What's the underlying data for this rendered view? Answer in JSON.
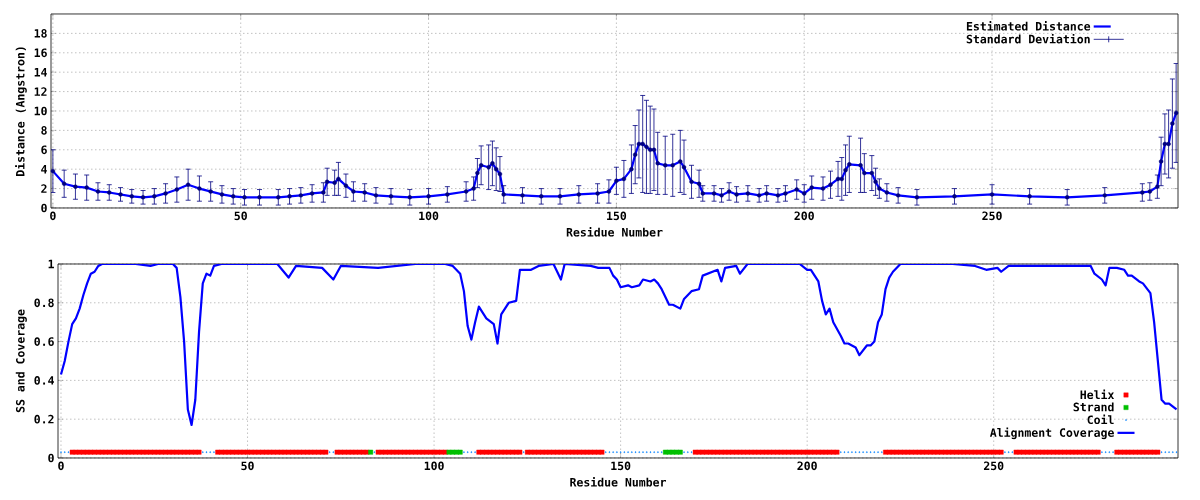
{
  "chart_data": [
    {
      "type": "line",
      "xlabel": "Residue Number",
      "ylabel": "Distance (Angstron)",
      "xlim": [
        -0.5,
        299.5
      ],
      "xticks": [
        0,
        50,
        100,
        150,
        200,
        250
      ],
      "ylim": [
        0,
        20
      ],
      "yticks": [
        0,
        2,
        4,
        6,
        8,
        10,
        12,
        14,
        16,
        18
      ],
      "grid": true,
      "legend": "top right",
      "x": [
        0,
        3,
        6,
        9,
        12,
        15,
        18,
        21,
        24,
        27,
        30,
        33,
        36,
        39,
        42,
        45,
        48,
        51,
        55,
        60,
        63,
        66,
        69,
        72,
        73,
        75,
        76,
        78,
        80,
        83,
        86,
        90,
        95,
        100,
        105,
        110,
        112,
        113,
        114,
        116,
        117,
        118,
        119,
        120,
        125,
        130,
        135,
        140,
        145,
        148,
        150,
        152,
        154,
        155,
        156,
        157,
        158,
        159,
        160,
        161,
        163,
        165,
        167,
        168,
        170,
        172,
        173,
        176,
        178,
        180,
        182,
        185,
        188,
        190,
        193,
        195,
        198,
        200,
        202,
        205,
        207,
        209,
        210,
        211,
        212,
        215,
        216,
        218,
        219,
        220,
        222,
        225,
        230,
        240,
        250,
        260,
        270,
        280,
        290,
        292,
        294,
        295,
        296,
        297,
        298,
        299
      ],
      "series": [
        {
          "name": "Estimated Distance",
          "color": "#0000ff",
          "values": [
            3.8,
            2.5,
            2.2,
            2.1,
            1.7,
            1.6,
            1.4,
            1.2,
            1.1,
            1.2,
            1.5,
            1.9,
            2.4,
            2.0,
            1.7,
            1.4,
            1.2,
            1.1,
            1.1,
            1.1,
            1.2,
            1.3,
            1.5,
            1.6,
            2.7,
            2.6,
            3.0,
            2.3,
            1.7,
            1.6,
            1.3,
            1.2,
            1.1,
            1.2,
            1.4,
            1.7,
            2.0,
            3.6,
            4.4,
            4.2,
            4.6,
            4.0,
            3.5,
            1.4,
            1.3,
            1.2,
            1.2,
            1.4,
            1.5,
            1.7,
            2.8,
            3.0,
            4.0,
            5.5,
            6.6,
            6.6,
            6.3,
            6.0,
            6.0,
            4.6,
            4.4,
            4.4,
            4.8,
            4.2,
            2.7,
            2.5,
            1.5,
            1.5,
            1.3,
            1.7,
            1.4,
            1.5,
            1.3,
            1.5,
            1.3,
            1.5,
            1.9,
            1.5,
            2.1,
            2.0,
            2.4,
            3.0,
            3.0,
            3.9,
            4.5,
            4.4,
            3.6,
            3.6,
            2.7,
            2.0,
            1.6,
            1.3,
            1.1,
            1.2,
            1.4,
            1.2,
            1.1,
            1.3,
            1.6,
            1.7,
            2.2,
            4.8,
            6.6,
            6.6,
            8.7,
            9.8
          ]
        },
        {
          "name": "Standard Deviation",
          "type": "scatter",
          "marker": "none",
          "color": "#000080",
          "values": [
            3.8,
            2.5,
            2.2,
            2.1,
            1.7,
            1.6,
            1.4,
            1.2,
            1.1,
            1.2,
            1.5,
            1.9,
            2.4,
            2.0,
            1.7,
            1.4,
            1.2,
            1.1,
            1.1,
            1.1,
            1.2,
            1.3,
            1.5,
            1.6,
            2.7,
            2.6,
            3.0,
            2.3,
            1.7,
            1.6,
            1.3,
            1.2,
            1.1,
            1.2,
            1.4,
            1.7,
            2.0,
            3.6,
            4.4,
            4.2,
            4.6,
            4.0,
            3.5,
            1.4,
            1.3,
            1.2,
            1.2,
            1.4,
            1.5,
            1.7,
            2.8,
            3.0,
            4.0,
            5.5,
            6.6,
            6.6,
            6.3,
            6.0,
            6.0,
            4.6,
            4.4,
            4.4,
            4.8,
            4.2,
            2.7,
            2.5,
            1.5,
            1.5,
            1.3,
            1.7,
            1.4,
            1.5,
            1.3,
            1.5,
            1.3,
            1.5,
            1.9,
            1.5,
            2.1,
            2.0,
            2.4,
            3.0,
            3.0,
            3.9,
            4.5,
            4.4,
            3.6,
            3.6,
            2.7,
            2.0,
            1.6,
            1.3,
            1.1,
            1.2,
            1.4,
            1.2,
            1.1,
            1.3,
            1.6,
            1.7,
            2.2,
            4.8,
            6.6,
            6.6,
            8.7,
            9.8
          ],
          "errors": [
            2.2,
            1.4,
            1.3,
            1.3,
            0.9,
            0.8,
            0.7,
            0.7,
            0.7,
            0.8,
            1.0,
            1.3,
            1.6,
            1.3,
            1.0,
            0.9,
            0.8,
            0.8,
            0.8,
            0.8,
            0.8,
            0.8,
            0.9,
            1.0,
            1.4,
            1.3,
            1.7,
            1.2,
            1.0,
            0.9,
            0.8,
            0.8,
            0.8,
            0.8,
            0.8,
            1.0,
            1.2,
            1.5,
            2.0,
            2.3,
            2.3,
            2.2,
            1.8,
            0.9,
            0.8,
            0.8,
            0.8,
            0.9,
            1.0,
            1.2,
            1.4,
            1.9,
            2.5,
            3.0,
            3.5,
            5.0,
            4.8,
            4.5,
            4.2,
            3.2,
            3.0,
            3.2,
            3.2,
            2.8,
            1.7,
            1.4,
            0.8,
            0.8,
            0.7,
            0.9,
            0.8,
            0.8,
            0.7,
            0.8,
            0.7,
            0.8,
            1.0,
            0.9,
            1.2,
            1.2,
            1.4,
            1.8,
            2.2,
            2.6,
            2.9,
            2.8,
            2.0,
            1.8,
            1.4,
            1.0,
            0.9,
            0.8,
            0.8,
            0.8,
            1.0,
            0.8,
            0.8,
            0.8,
            0.9,
            0.9,
            1.2,
            2.5,
            3.1,
            3.5,
            4.6,
            5.1
          ]
        }
      ]
    },
    {
      "type": "line",
      "xlabel": "Residue Number",
      "ylabel": "SS and Coverage",
      "xlim": [
        -0.8,
        299.4
      ],
      "xticks": [
        0,
        50,
        100,
        150,
        200,
        250
      ],
      "ylim": [
        0,
        1
      ],
      "yticks": [
        0,
        0.2,
        0.4,
        0.6,
        0.8,
        1
      ],
      "grid": true,
      "legend": "bottom right",
      "series": [
        {
          "name": "Helix",
          "type": "scatter",
          "marker": "square",
          "color": "#ff0000",
          "x": [
            3,
            4,
            5,
            6,
            7,
            8,
            9,
            10,
            11,
            12,
            13,
            14,
            15,
            16,
            17,
            18,
            19,
            20,
            21,
            22,
            23,
            24,
            25,
            26,
            27,
            28,
            29,
            30,
            31,
            32,
            33,
            34,
            35,
            36,
            37,
            42,
            43,
            44,
            45,
            46,
            47,
            48,
            49,
            50,
            51,
            52,
            53,
            54,
            55,
            56,
            57,
            58,
            59,
            60,
            61,
            62,
            63,
            64,
            65,
            66,
            67,
            68,
            69,
            70,
            71,
            74,
            75,
            76,
            77,
            78,
            79,
            80,
            81,
            82,
            85,
            86,
            87,
            88,
            89,
            90,
            91,
            92,
            93,
            94,
            95,
            96,
            97,
            98,
            99,
            100,
            101,
            102,
            103,
            112,
            113,
            114,
            115,
            116,
            117,
            118,
            119,
            120,
            121,
            122,
            123,
            125,
            126,
            127,
            128,
            129,
            130,
            131,
            132,
            133,
            134,
            135,
            136,
            137,
            138,
            139,
            140,
            141,
            142,
            143,
            144,
            145,
            170,
            171,
            172,
            173,
            174,
            175,
            176,
            177,
            178,
            179,
            180,
            181,
            182,
            183,
            184,
            185,
            186,
            187,
            188,
            189,
            190,
            191,
            192,
            193,
            194,
            195,
            196,
            197,
            198,
            199,
            200,
            201,
            202,
            203,
            204,
            205,
            206,
            207,
            208,
            221,
            222,
            223,
            224,
            225,
            226,
            227,
            228,
            229,
            230,
            231,
            232,
            233,
            234,
            235,
            236,
            237,
            238,
            239,
            240,
            241,
            242,
            243,
            244,
            245,
            246,
            247,
            248,
            249,
            250,
            251,
            252,
            256,
            257,
            258,
            259,
            260,
            261,
            262,
            263,
            264,
            265,
            266,
            267,
            268,
            269,
            270,
            271,
            272,
            273,
            274,
            275,
            276,
            277,
            278,
            283,
            284,
            285,
            286,
            287,
            288,
            289,
            290,
            291,
            292,
            293,
            294
          ],
          "values": [
            0.03,
            0.03,
            0.03,
            0.03,
            0.03,
            0.03,
            0.03,
            0.03,
            0.03,
            0.03,
            0.03,
            0.03,
            0.03,
            0.03,
            0.03,
            0.03,
            0.03,
            0.03,
            0.03,
            0.03,
            0.03,
            0.03,
            0.03,
            0.03,
            0.03,
            0.03,
            0.03,
            0.03,
            0.03,
            0.03,
            0.03,
            0.03,
            0.03,
            0.03,
            0.03,
            0.03,
            0.03,
            0.03,
            0.03,
            0.03,
            0.03,
            0.03,
            0.03,
            0.03,
            0.03,
            0.03,
            0.03,
            0.03,
            0.03,
            0.03,
            0.03,
            0.03,
            0.03,
            0.03,
            0.03,
            0.03,
            0.03,
            0.03,
            0.03,
            0.03,
            0.03,
            0.03,
            0.03,
            0.03,
            0.03,
            0.03,
            0.03,
            0.03,
            0.03,
            0.03,
            0.03,
            0.03,
            0.03,
            0.03,
            0.03,
            0.03,
            0.03,
            0.03,
            0.03,
            0.03,
            0.03,
            0.03,
            0.03,
            0.03,
            0.03,
            0.03,
            0.03,
            0.03,
            0.03,
            0.03,
            0.03,
            0.03,
            0.03,
            0.03,
            0.03,
            0.03,
            0.03,
            0.03,
            0.03,
            0.03,
            0.03,
            0.03,
            0.03,
            0.03,
            0.03,
            0.03,
            0.03,
            0.03,
            0.03,
            0.03,
            0.03,
            0.03,
            0.03,
            0.03,
            0.03,
            0.03,
            0.03,
            0.03,
            0.03,
            0.03,
            0.03,
            0.03,
            0.03,
            0.03,
            0.03,
            0.03,
            0.03,
            0.03,
            0.03,
            0.03,
            0.03,
            0.03,
            0.03,
            0.03,
            0.03,
            0.03,
            0.03,
            0.03,
            0.03,
            0.03,
            0.03,
            0.03,
            0.03,
            0.03,
            0.03,
            0.03,
            0.03,
            0.03,
            0.03,
            0.03,
            0.03,
            0.03,
            0.03,
            0.03,
            0.03,
            0.03,
            0.03,
            0.03,
            0.03,
            0.03,
            0.03,
            0.03,
            0.03,
            0.03,
            0.03,
            0.03,
            0.03,
            0.03,
            0.03,
            0.03,
            0.03,
            0.03,
            0.03,
            0.03,
            0.03,
            0.03,
            0.03,
            0.03,
            0.03,
            0.03,
            0.03,
            0.03,
            0.03,
            0.03,
            0.03,
            0.03,
            0.03,
            0.03,
            0.03,
            0.03,
            0.03,
            0.03,
            0.03,
            0.03,
            0.03,
            0.03,
            0.03,
            0.03,
            0.03,
            0.03,
            0.03,
            0.03,
            0.03,
            0.03,
            0.03,
            0.03,
            0.03,
            0.03,
            0.03,
            0.03,
            0.03,
            0.03,
            0.03,
            0.03,
            0.03,
            0.03,
            0.03,
            0.03,
            0.03,
            0.03,
            0.03,
            0.03,
            0.03,
            0.03,
            0.03,
            0.03,
            0.03,
            0.03,
            0.03,
            0.03,
            0.03,
            0.03
          ]
        },
        {
          "name": "Strand",
          "type": "scatter",
          "marker": "square",
          "color": "#00c000",
          "x": [
            83,
            104,
            105,
            106,
            107,
            162,
            163,
            164,
            165,
            166
          ],
          "values": [
            0.03,
            0.03,
            0.03,
            0.03,
            0.03,
            0.03,
            0.03,
            0.03,
            0.03,
            0.03
          ]
        },
        {
          "name": "Coil",
          "type": "scatter",
          "marker": "circle",
          "color": "#0080ff",
          "x": [
            0,
            1,
            2,
            38,
            39,
            40,
            41,
            72,
            73,
            84,
            108,
            109,
            110,
            111,
            124,
            146,
            147,
            148,
            149,
            150,
            151,
            152,
            153,
            154,
            155,
            156,
            157,
            158,
            159,
            160,
            161,
            167,
            168,
            169,
            209,
            210,
            211,
            212,
            213,
            214,
            215,
            216,
            217,
            218,
            219,
            220,
            253,
            254,
            255,
            279,
            280,
            281,
            282,
            295,
            296,
            297,
            298,
            299
          ],
          "values": [
            0.03,
            0.03,
            0.03,
            0.03,
            0.03,
            0.03,
            0.03,
            0.03,
            0.03,
            0.03,
            0.03,
            0.03,
            0.03,
            0.03,
            0.03,
            0.03,
            0.03,
            0.03,
            0.03,
            0.03,
            0.03,
            0.03,
            0.03,
            0.03,
            0.03,
            0.03,
            0.03,
            0.03,
            0.03,
            0.03,
            0.03,
            0.03,
            0.03,
            0.03,
            0.03,
            0.03,
            0.03,
            0.03,
            0.03,
            0.03,
            0.03,
            0.03,
            0.03,
            0.03,
            0.03,
            0.03,
            0.03,
            0.03,
            0.03,
            0.03,
            0.03,
            0.03,
            0.03,
            0.03,
            0.03,
            0.03,
            0.03,
            0.03
          ]
        },
        {
          "name": "Alignment Coverage",
          "color": "#0000ff",
          "x": [
            0,
            1,
            2,
            3,
            4,
            5,
            6,
            7,
            8,
            9,
            10,
            11,
            20,
            24,
            26,
            30,
            31,
            32,
            33,
            34,
            35,
            36,
            37,
            38,
            39,
            40,
            41,
            43,
            58,
            61,
            63,
            70,
            73,
            75,
            85,
            95,
            103,
            105,
            107,
            108,
            109,
            110,
            111,
            112,
            114,
            116,
            117,
            118,
            120,
            122,
            123,
            126,
            128,
            132,
            134,
            135,
            142,
            144,
            147,
            148,
            149,
            150,
            152,
            153,
            155,
            156,
            158,
            159,
            160,
            161,
            163,
            164,
            166,
            167,
            169,
            171,
            172,
            176,
            177,
            178,
            181,
            182,
            184,
            198,
            200,
            201,
            203,
            204,
            205,
            206,
            207,
            209,
            210,
            211,
            213,
            214,
            216,
            217,
            218,
            219,
            220,
            221,
            222,
            223,
            225,
            239,
            245,
            248,
            251,
            252,
            254,
            261,
            276,
            277,
            279,
            280,
            281,
            283,
            285,
            286,
            287,
            289,
            290,
            292,
            293,
            294,
            295,
            296,
            297,
            299
          ],
          "values": [
            0.43,
            0.5,
            0.6,
            0.69,
            0.72,
            0.77,
            0.84,
            0.9,
            0.95,
            0.96,
            0.99,
            1.0,
            1.0,
            0.99,
            1.0,
            1.0,
            0.98,
            0.83,
            0.6,
            0.25,
            0.17,
            0.3,
            0.65,
            0.9,
            0.95,
            0.94,
            0.99,
            1.0,
            1.0,
            0.93,
            0.99,
            0.98,
            0.92,
            0.99,
            0.98,
            1.0,
            1.0,
            0.99,
            0.95,
            0.86,
            0.68,
            0.61,
            0.7,
            0.78,
            0.72,
            0.69,
            0.59,
            0.74,
            0.8,
            0.81,
            0.97,
            0.97,
            0.99,
            1.0,
            0.92,
            1.0,
            0.99,
            0.98,
            0.98,
            0.94,
            0.92,
            0.88,
            0.89,
            0.88,
            0.89,
            0.92,
            0.91,
            0.92,
            0.9,
            0.87,
            0.79,
            0.79,
            0.77,
            0.82,
            0.86,
            0.87,
            0.94,
            0.97,
            0.91,
            0.98,
            0.99,
            0.95,
            1.0,
            1.0,
            0.97,
            0.97,
            0.91,
            0.81,
            0.74,
            0.77,
            0.7,
            0.63,
            0.59,
            0.59,
            0.57,
            0.53,
            0.58,
            0.58,
            0.6,
            0.7,
            0.74,
            0.87,
            0.93,
            0.96,
            1.0,
            1.0,
            0.99,
            0.97,
            0.98,
            0.96,
            0.99,
            0.99,
            0.99,
            0.95,
            0.92,
            0.89,
            0.98,
            0.98,
            0.97,
            0.94,
            0.94,
            0.91,
            0.9,
            0.85,
            0.7,
            0.5,
            0.3,
            0.28,
            0.28,
            0.25
          ]
        }
      ]
    }
  ]
}
